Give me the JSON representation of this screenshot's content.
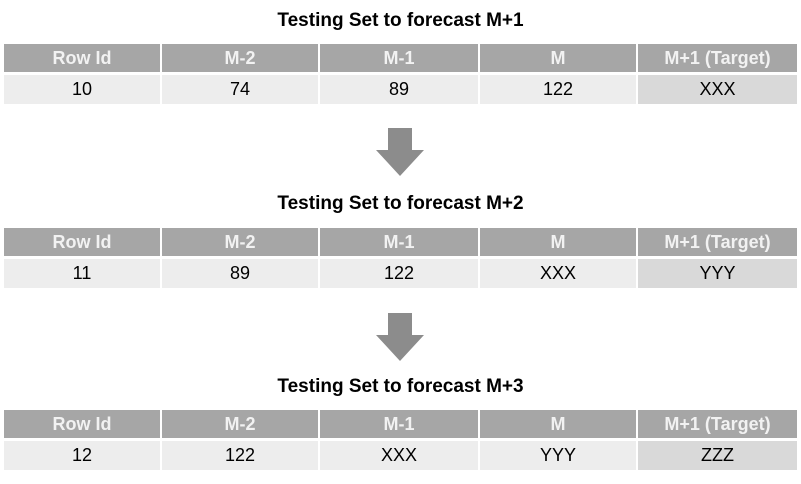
{
  "headers": [
    "Row Id",
    "M-2",
    "M-1",
    "M",
    "M+1 (Target)"
  ],
  "tables": [
    {
      "title": "Testing Set to forecast M+1",
      "row": [
        "10",
        "74",
        "89",
        "122",
        "XXX"
      ]
    },
    {
      "title": "Testing Set to forecast M+2",
      "row": [
        "11",
        "89",
        "122",
        "XXX",
        "YYY"
      ]
    },
    {
      "title": "Testing Set to forecast M+3",
      "row": [
        "12",
        "122",
        "XXX",
        "YYY",
        "ZZZ"
      ]
    }
  ],
  "colors": {
    "header_bg": "#a6a6a6",
    "header_text": "#f2f2f2",
    "cell_bg": "#ededed",
    "target_bg": "#d9d9d9",
    "arrow": "#8c8c8c"
  },
  "icons": {
    "arrow": "arrow-down-icon"
  }
}
